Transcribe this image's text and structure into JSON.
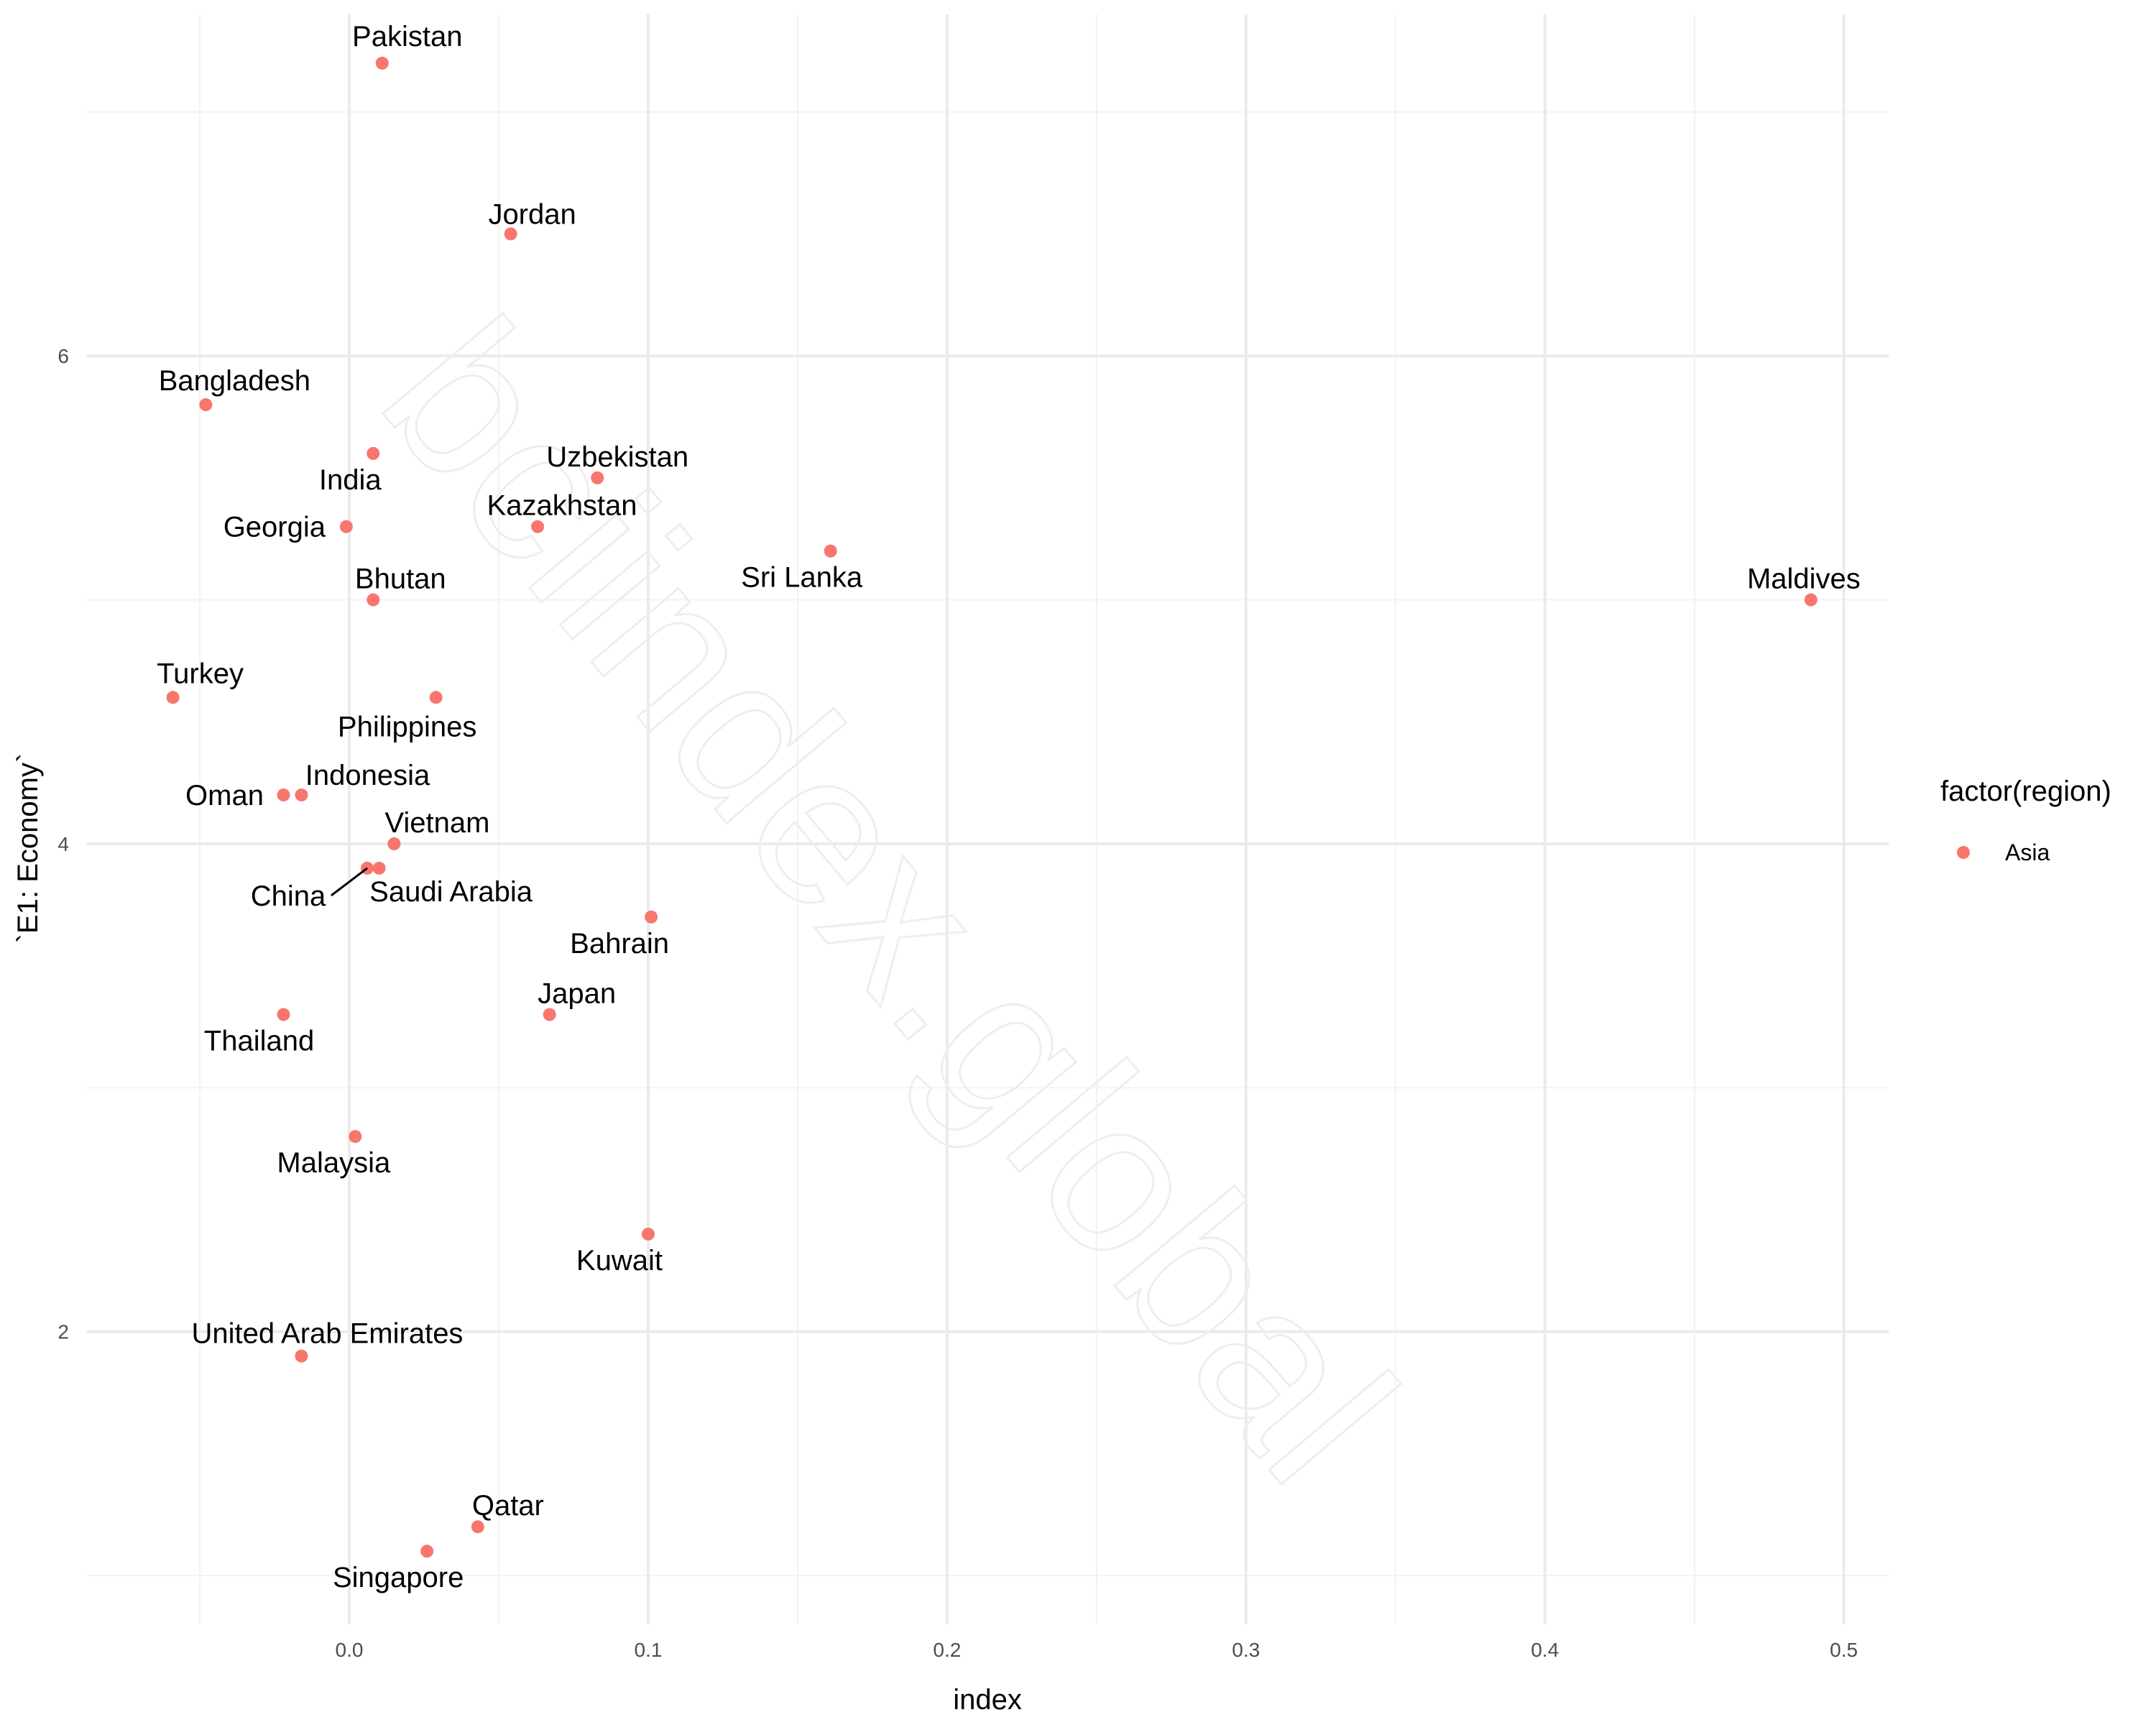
{
  "chart_data": {
    "type": "scatter",
    "xlabel": "index",
    "ylabel": "`E1: Economy`",
    "xlim": [
      -0.088,
      0.515
    ],
    "ylim": [
      0.8,
      7.4
    ],
    "x_ticks": [
      0.0,
      0.1,
      0.2,
      0.3,
      0.4,
      0.5
    ],
    "x_tick_labels": [
      "0.0",
      "0.1",
      "0.2",
      "0.3",
      "0.4",
      "0.5"
    ],
    "y_ticks": [
      2,
      4,
      6
    ],
    "y_tick_labels": [
      "2",
      "4",
      "6"
    ],
    "grid": true,
    "legend": {
      "title": "factor(region)",
      "position": "right",
      "entries": [
        {
          "label": "Asia",
          "color": "#F8766D"
        }
      ]
    },
    "point_color": "#F8766D",
    "watermark": "bciindex.global",
    "points": [
      {
        "label": "Pakistan",
        "x": 0.011,
        "y": 7.2
      },
      {
        "label": "Jordan",
        "x": 0.054,
        "y": 6.5
      },
      {
        "label": "Bangladesh",
        "x": -0.048,
        "y": 5.8
      },
      {
        "label": "India",
        "x": 0.008,
        "y": 5.6
      },
      {
        "label": "Uzbekistan",
        "x": 0.083,
        "y": 5.5
      },
      {
        "label": "Georgia",
        "x": -0.001,
        "y": 5.3
      },
      {
        "label": "Kazakhstan",
        "x": 0.063,
        "y": 5.3
      },
      {
        "label": "Sri Lanka",
        "x": 0.161,
        "y": 5.2
      },
      {
        "label": "Bhutan",
        "x": 0.008,
        "y": 5.0
      },
      {
        "label": "Maldives",
        "x": 0.489,
        "y": 5.0
      },
      {
        "label": "Turkey",
        "x": -0.059,
        "y": 4.6
      },
      {
        "label": "Philippines",
        "x": 0.029,
        "y": 4.6
      },
      {
        "label": "Oman",
        "x": -0.022,
        "y": 4.2
      },
      {
        "label": "Indonesia",
        "x": -0.016,
        "y": 4.2
      },
      {
        "label": "Vietnam",
        "x": 0.015,
        "y": 4.0
      },
      {
        "label": "China",
        "x": 0.006,
        "y": 3.9
      },
      {
        "label": "Saudi Arabia",
        "x": 0.01,
        "y": 3.9
      },
      {
        "label": "Bahrain",
        "x": 0.101,
        "y": 3.7
      },
      {
        "label": "Japan",
        "x": 0.067,
        "y": 3.3
      },
      {
        "label": "Thailand",
        "x": -0.022,
        "y": 3.3
      },
      {
        "label": "Malaysia",
        "x": 0.002,
        "y": 2.8
      },
      {
        "label": "Kuwait",
        "x": 0.1,
        "y": 2.4
      },
      {
        "label": "United Arab Emirates",
        "x": -0.016,
        "y": 1.9
      },
      {
        "label": "Qatar",
        "x": 0.043,
        "y": 1.2
      },
      {
        "label": "Singapore",
        "x": 0.026,
        "y": 1.1
      }
    ]
  }
}
